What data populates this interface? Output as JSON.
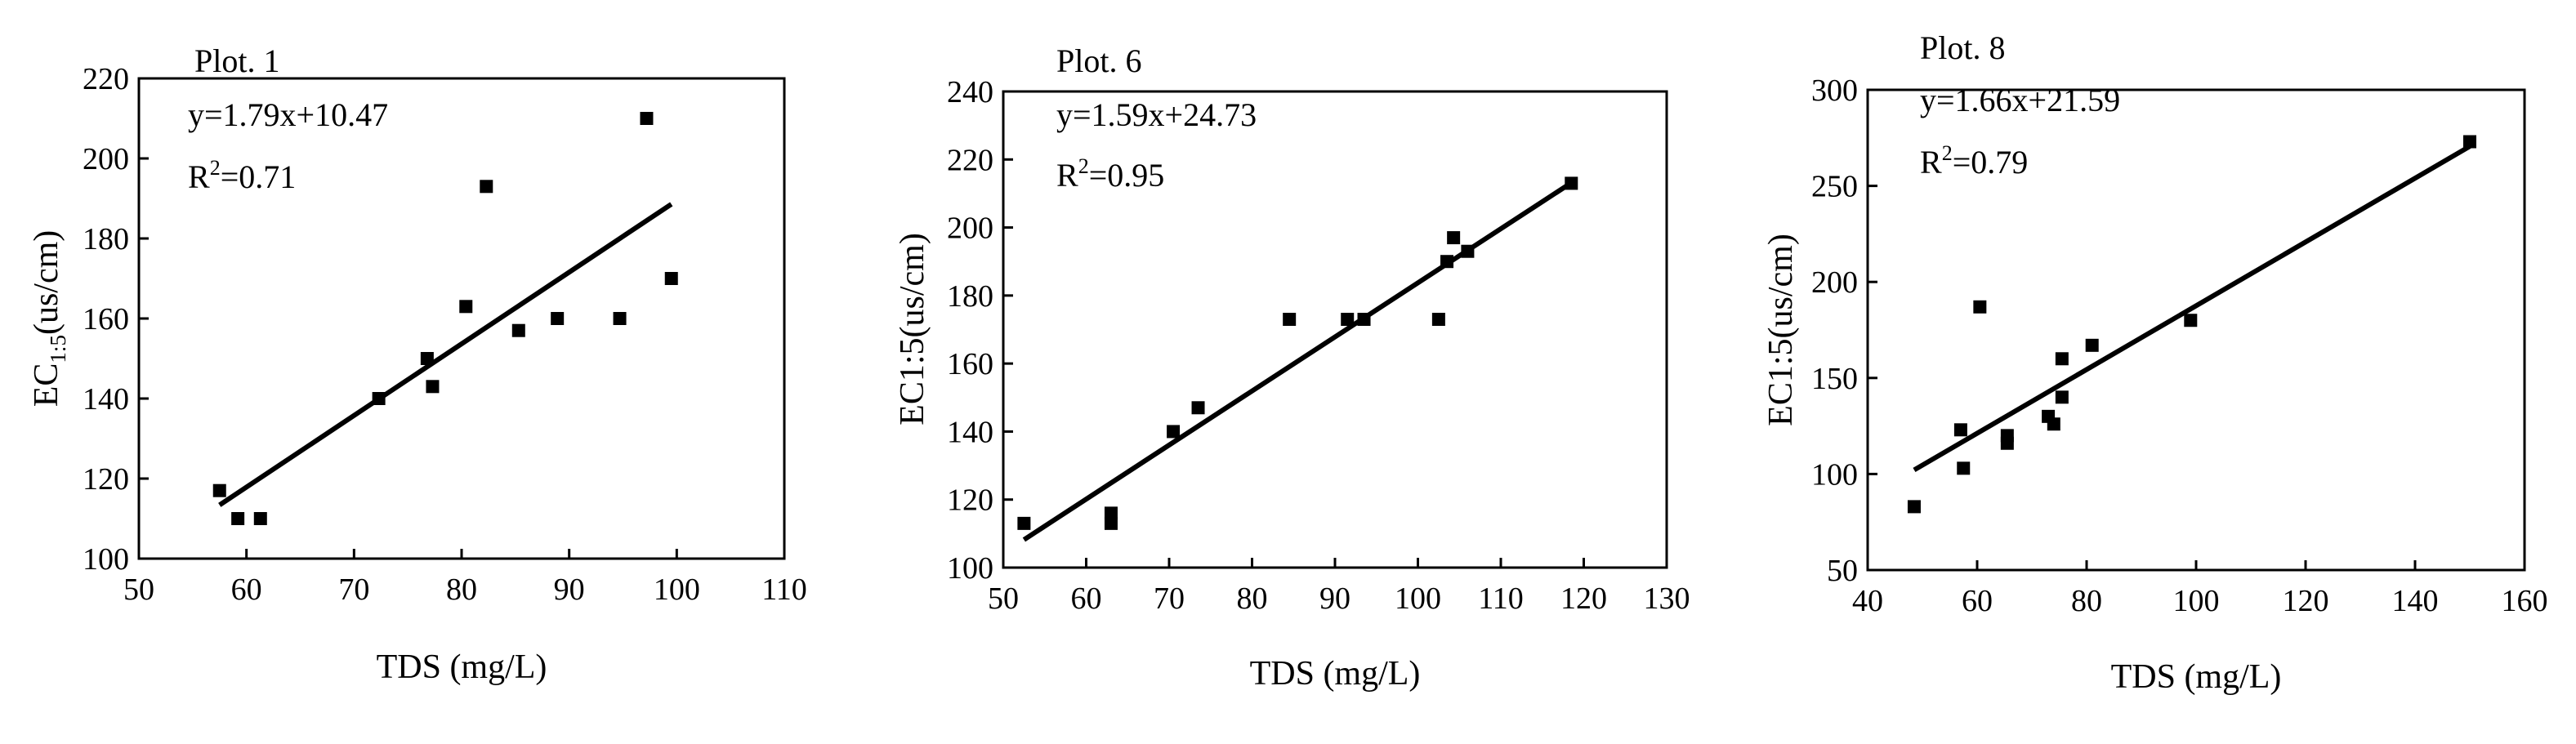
{
  "chart_data": [
    {
      "type": "scatter",
      "title": "Plot. 1",
      "equation": "y=1.79x+10.47",
      "r2_prefix": "R",
      "r2_sup": "2",
      "r2_value": "=0.71",
      "xlabel": "TDS (mg/L)",
      "ylabel_main": "EC",
      "ylabel_sub": "1:5",
      "ylabel_tail": "(us/cm)",
      "xlim": [
        50,
        110
      ],
      "ylim": [
        100,
        220
      ],
      "xticks": [
        50,
        60,
        70,
        80,
        90,
        100,
        110
      ],
      "yticks": [
        100,
        120,
        140,
        160,
        180,
        200,
        220
      ],
      "points": [
        {
          "x": 57.5,
          "y": 117
        },
        {
          "x": 59.2,
          "y": 110
        },
        {
          "x": 61.3,
          "y": 110
        },
        {
          "x": 72.3,
          "y": 140
        },
        {
          "x": 76.8,
          "y": 150
        },
        {
          "x": 77.3,
          "y": 143
        },
        {
          "x": 80.4,
          "y": 163
        },
        {
          "x": 82.3,
          "y": 193
        },
        {
          "x": 85.3,
          "y": 157
        },
        {
          "x": 88.9,
          "y": 160
        },
        {
          "x": 94.7,
          "y": 160
        },
        {
          "x": 97.2,
          "y": 210
        },
        {
          "x": 99.5,
          "y": 170
        }
      ],
      "fit": {
        "slope": 1.79,
        "intercept": 10.47,
        "x_range": [
          57.5,
          99.5
        ]
      }
    },
    {
      "type": "scatter",
      "title": "Plot. 6",
      "equation": "y=1.59x+24.73",
      "r2_prefix": "R",
      "r2_sup": "2",
      "r2_value": "=0.95",
      "xlabel": "TDS (mg/L)",
      "ylabel_main": "EC1:5(us/cm)",
      "ylabel_sub": "",
      "ylabel_tail": "",
      "xlim": [
        50,
        130
      ],
      "ylim": [
        100,
        240
      ],
      "xticks": [
        50,
        60,
        70,
        80,
        90,
        100,
        110,
        120,
        130
      ],
      "yticks": [
        100,
        120,
        140,
        160,
        180,
        200,
        220,
        240
      ],
      "points": [
        {
          "x": 52.5,
          "y": 113
        },
        {
          "x": 63,
          "y": 113
        },
        {
          "x": 63,
          "y": 116
        },
        {
          "x": 70.5,
          "y": 140
        },
        {
          "x": 73.5,
          "y": 147
        },
        {
          "x": 84.5,
          "y": 173
        },
        {
          "x": 91.5,
          "y": 173
        },
        {
          "x": 93.5,
          "y": 173
        },
        {
          "x": 102.5,
          "y": 173
        },
        {
          "x": 103.5,
          "y": 190
        },
        {
          "x": 104.3,
          "y": 197
        },
        {
          "x": 106,
          "y": 193
        },
        {
          "x": 118.5,
          "y": 213
        }
      ],
      "fit": {
        "slope": 1.59,
        "intercept": 24.73,
        "x_range": [
          52.5,
          118.5
        ]
      }
    },
    {
      "type": "scatter",
      "title": "Plot. 8",
      "equation": "y=1.66x+21.59",
      "r2_prefix": "R",
      "r2_sup": "2",
      "r2_value": "=0.79",
      "xlabel": "TDS (mg/L)",
      "ylabel_main": "EC1:5(us/cm)",
      "ylabel_sub": "",
      "ylabel_tail": "",
      "xlim": [
        40,
        160
      ],
      "ylim": [
        50,
        300
      ],
      "xticks": [
        40,
        60,
        80,
        100,
        120,
        140,
        160
      ],
      "yticks": [
        50,
        100,
        150,
        200,
        250,
        300
      ],
      "points": [
        {
          "x": 48.5,
          "y": 83
        },
        {
          "x": 57,
          "y": 123
        },
        {
          "x": 57.5,
          "y": 103
        },
        {
          "x": 60.5,
          "y": 187
        },
        {
          "x": 65.5,
          "y": 120
        },
        {
          "x": 65.5,
          "y": 116
        },
        {
          "x": 73,
          "y": 130
        },
        {
          "x": 74,
          "y": 126
        },
        {
          "x": 75.5,
          "y": 160
        },
        {
          "x": 75.5,
          "y": 140
        },
        {
          "x": 81,
          "y": 167
        },
        {
          "x": 99,
          "y": 180
        },
        {
          "x": 150,
          "y": 273
        }
      ],
      "fit": {
        "slope": 1.66,
        "intercept": 21.59,
        "x_range": [
          48.5,
          150
        ]
      }
    }
  ]
}
